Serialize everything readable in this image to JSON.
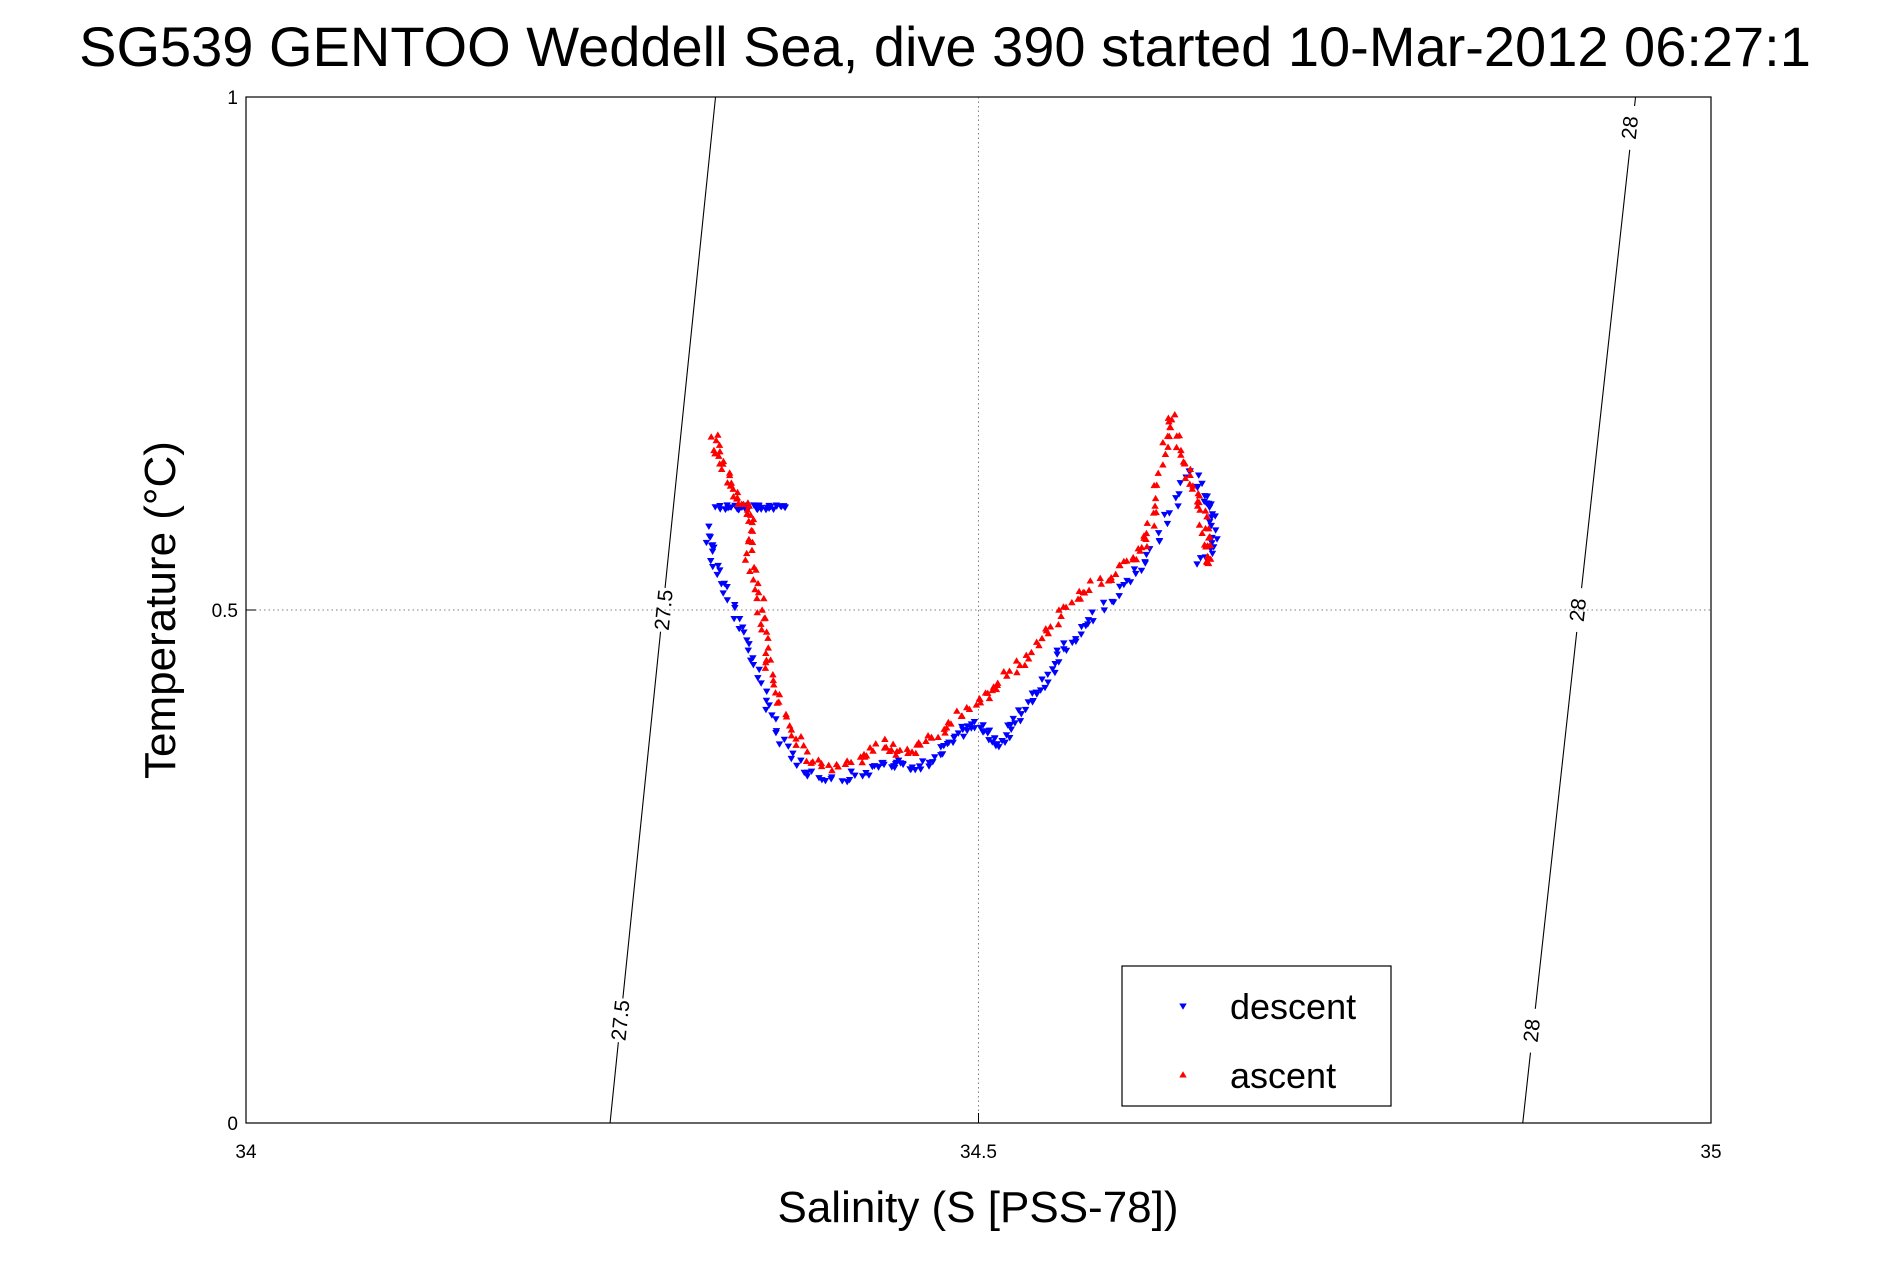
{
  "chart_data": {
    "type": "scatter",
    "title": "SG539 GENTOO Weddell Sea, dive 390 started 10-Mar-2012 06:27:1",
    "xlabel": "Salinity (S [PSS-78])",
    "ylabel": "Temperature (°C)",
    "xlim": [
      34,
      35
    ],
    "ylim": [
      0,
      1
    ],
    "xticks": [
      34,
      34.5,
      35
    ],
    "yticks": [
      0,
      0.5,
      1
    ],
    "xtick_labels": [
      "34",
      "34.5",
      "35"
    ],
    "ytick_labels": [
      "0",
      "0.5",
      "1"
    ],
    "grid": true,
    "legend_position": "lower-right inside",
    "colors": {
      "descent": "#0000ff",
      "ascent": "#ff0000",
      "contour": "#000000",
      "grid": "#808080"
    },
    "series": [
      {
        "name": "descent",
        "marker": "down-triangle",
        "path": [
          [
            34.315,
            0.58
          ],
          [
            34.318,
            0.555
          ],
          [
            34.325,
            0.525
          ],
          [
            34.335,
            0.49
          ],
          [
            34.345,
            0.455
          ],
          [
            34.355,
            0.415
          ],
          [
            34.365,
            0.375
          ],
          [
            34.38,
            0.345
          ],
          [
            34.4,
            0.335
          ],
          [
            34.42,
            0.34
          ],
          [
            34.435,
            0.35
          ],
          [
            34.445,
            0.35
          ],
          [
            34.455,
            0.345
          ],
          [
            34.47,
            0.355
          ],
          [
            34.48,
            0.37
          ],
          [
            34.49,
            0.385
          ],
          [
            34.5,
            0.39
          ],
          [
            34.51,
            0.375
          ],
          [
            34.515,
            0.37
          ],
          [
            34.525,
            0.39
          ],
          [
            34.535,
            0.41
          ],
          [
            34.545,
            0.43
          ],
          [
            34.555,
            0.455
          ],
          [
            34.565,
            0.475
          ],
          [
            34.58,
            0.495
          ],
          [
            34.6,
            0.525
          ],
          [
            34.615,
            0.545
          ],
          [
            34.63,
            0.59
          ],
          [
            34.645,
            0.635
          ],
          [
            34.655,
            0.61
          ],
          [
            34.66,
            0.595
          ],
          [
            34.66,
            0.565
          ],
          [
            34.65,
            0.545
          ]
        ],
        "cluster": {
          "s_range": [
            34.32,
            34.37
          ],
          "t": 0.6
        }
      },
      {
        "name": "ascent",
        "marker": "up-triangle",
        "path": [
          [
            34.32,
            0.67
          ],
          [
            34.322,
            0.65
          ],
          [
            34.33,
            0.625
          ],
          [
            34.335,
            0.61
          ],
          [
            34.34,
            0.6
          ],
          [
            34.345,
            0.585
          ],
          [
            34.342,
            0.555
          ],
          [
            34.35,
            0.52
          ],
          [
            34.352,
            0.49
          ],
          [
            34.355,
            0.455
          ],
          [
            34.36,
            0.42
          ],
          [
            34.37,
            0.385
          ],
          [
            34.385,
            0.355
          ],
          [
            34.4,
            0.345
          ],
          [
            34.42,
            0.355
          ],
          [
            34.435,
            0.37
          ],
          [
            34.445,
            0.36
          ],
          [
            34.46,
            0.365
          ],
          [
            34.475,
            0.38
          ],
          [
            34.49,
            0.4
          ],
          [
            34.505,
            0.415
          ],
          [
            34.515,
            0.43
          ],
          [
            34.53,
            0.45
          ],
          [
            34.545,
            0.475
          ],
          [
            34.56,
            0.5
          ],
          [
            34.575,
            0.52
          ],
          [
            34.59,
            0.535
          ],
          [
            34.605,
            0.55
          ],
          [
            34.615,
            0.57
          ],
          [
            34.62,
            0.6
          ],
          [
            34.628,
            0.66
          ],
          [
            34.632,
            0.69
          ],
          [
            34.638,
            0.65
          ],
          [
            34.645,
            0.625
          ],
          [
            34.652,
            0.6
          ],
          [
            34.655,
            0.575
          ],
          [
            34.658,
            0.555
          ],
          [
            34.66,
            0.54
          ]
        ]
      }
    ],
    "density_contours": [
      {
        "label": "27.5",
        "line": [
          [
            34.2485,
            0
          ],
          [
            34.3205,
            1
          ]
        ],
        "labels_at": [
          [
            34.256,
            0.1
          ],
          [
            34.2855,
            0.5
          ]
        ]
      },
      {
        "label": "28",
        "line": [
          [
            34.8715,
            0
          ],
          [
            34.9485,
            1
          ]
        ],
        "labels_at": [
          [
            34.878,
            0.09
          ],
          [
            34.9095,
            0.5
          ],
          [
            34.945,
            0.97
          ]
        ]
      }
    ]
  }
}
